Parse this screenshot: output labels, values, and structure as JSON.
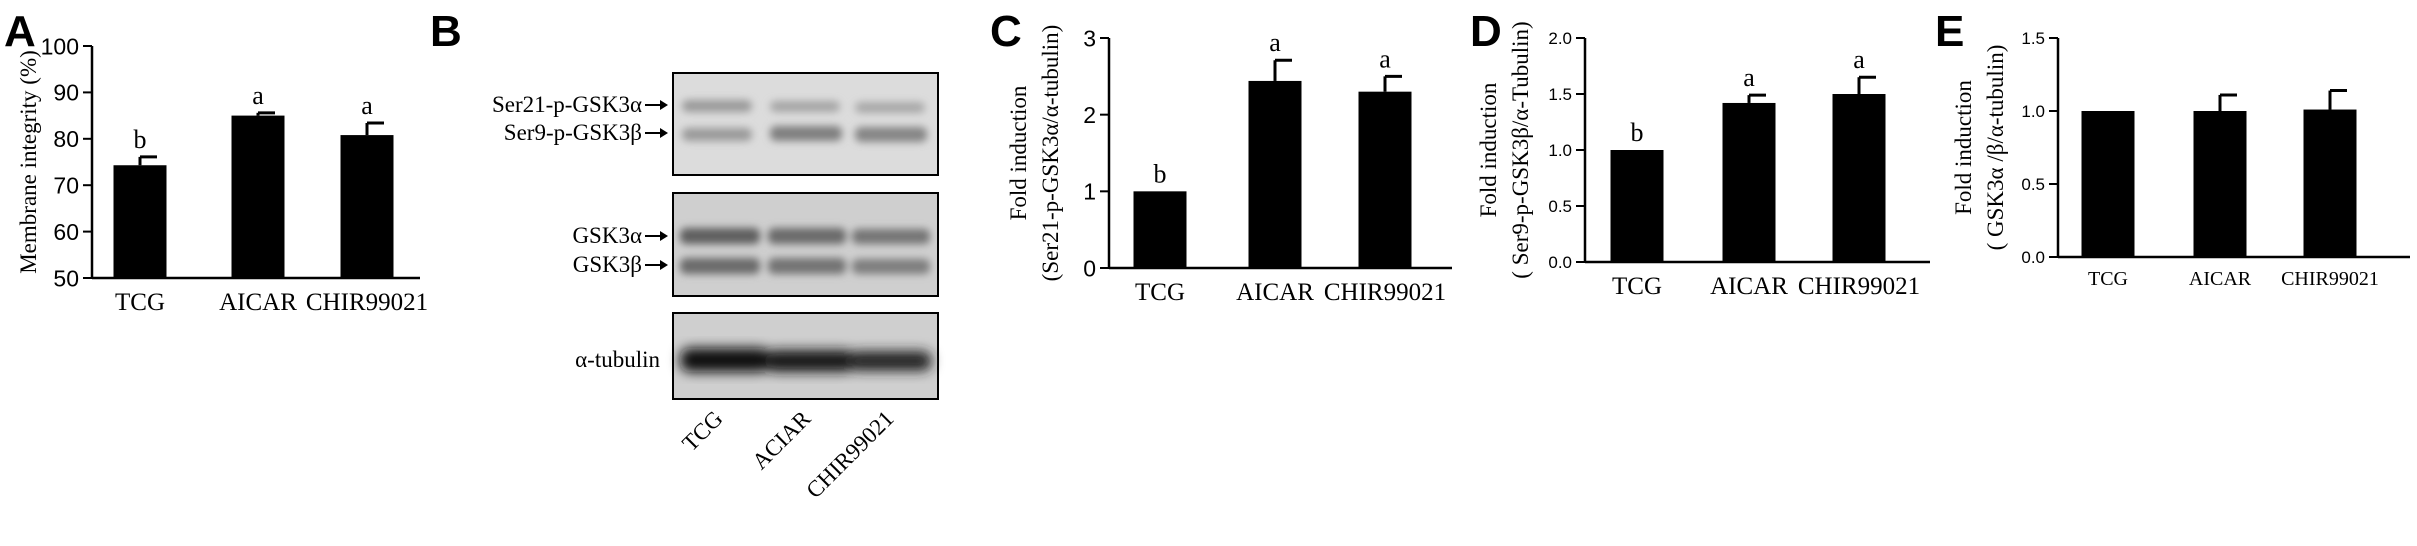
{
  "panels": {
    "A": {
      "letter": "A"
    },
    "B": {
      "letter": "B",
      "blot_labels": {
        "ser21": "Ser21-p-GSK3α",
        "ser9": "Ser9-p-GSK3β",
        "gsk3a": "GSK3α",
        "gsk3b": "GSK3β",
        "tubulin": "α-tubulin"
      },
      "lanes": [
        "TCG",
        "ACIAR",
        "CHIR99021"
      ]
    },
    "C": {
      "letter": "C"
    },
    "D": {
      "letter": "D"
    },
    "E": {
      "letter": "E"
    }
  },
  "chart_data": [
    {
      "panel": "A",
      "type": "bar",
      "categories": [
        "TCG",
        "AICAR",
        "CHIR99021"
      ],
      "values": [
        74.3,
        85.0,
        80.8
      ],
      "errors": [
        1.8,
        0.6,
        2.6
      ],
      "significance": [
        "b",
        "a",
        "a"
      ],
      "title": "",
      "xlabel": "",
      "ylabel": "Membrane integrity (%)",
      "ylim": [
        50,
        100
      ],
      "yticks": [
        "50",
        "60",
        "70",
        "80",
        "90",
        "100"
      ],
      "grid": false
    },
    {
      "panel": "C",
      "type": "bar",
      "categories": [
        "TCG",
        "AICAR",
        "CHIR99021"
      ],
      "values": [
        1.0,
        2.44,
        2.3
      ],
      "errors": [
        0.0,
        0.27,
        0.2
      ],
      "significance": [
        "b",
        "a",
        "a"
      ],
      "title": "",
      "xlabel": "",
      "ylabel": [
        "Fold induction",
        "(Ser21-p-GSK3α/α-tubulin)"
      ],
      "ylim": [
        0,
        3
      ],
      "yticks": [
        "0",
        "1",
        "2",
        "3"
      ],
      "grid": false
    },
    {
      "panel": "D",
      "type": "bar",
      "categories": [
        "TCG",
        "AICAR",
        "CHIR99021"
      ],
      "values": [
        1.0,
        1.42,
        1.5
      ],
      "errors": [
        0.0,
        0.07,
        0.15
      ],
      "significance": [
        "b",
        "a",
        "a"
      ],
      "title": "",
      "xlabel": "",
      "ylabel": [
        "Fold induction",
        "( Ser9-p-GSK3β/α-Tubulin)"
      ],
      "ylim": [
        0,
        2
      ],
      "yticks": [
        "0.0",
        "0.5",
        "1.0",
        "1.5",
        "2.0"
      ],
      "grid": false
    },
    {
      "panel": "E",
      "type": "bar",
      "categories": [
        "TCG",
        "AICAR",
        "CHIR99021"
      ],
      "values": [
        1.0,
        1.0,
        1.01
      ],
      "errors": [
        0.0,
        0.11,
        0.13
      ],
      "significance": [
        "",
        "",
        ""
      ],
      "title": "",
      "xlabel": "",
      "ylabel": [
        "Fold induction",
        "( GSK3α /β/α-tubulin)"
      ],
      "ylim": [
        0,
        1.5
      ],
      "yticks": [
        "0.0",
        "0.5",
        "1.0",
        "1.5"
      ],
      "grid": false
    }
  ]
}
